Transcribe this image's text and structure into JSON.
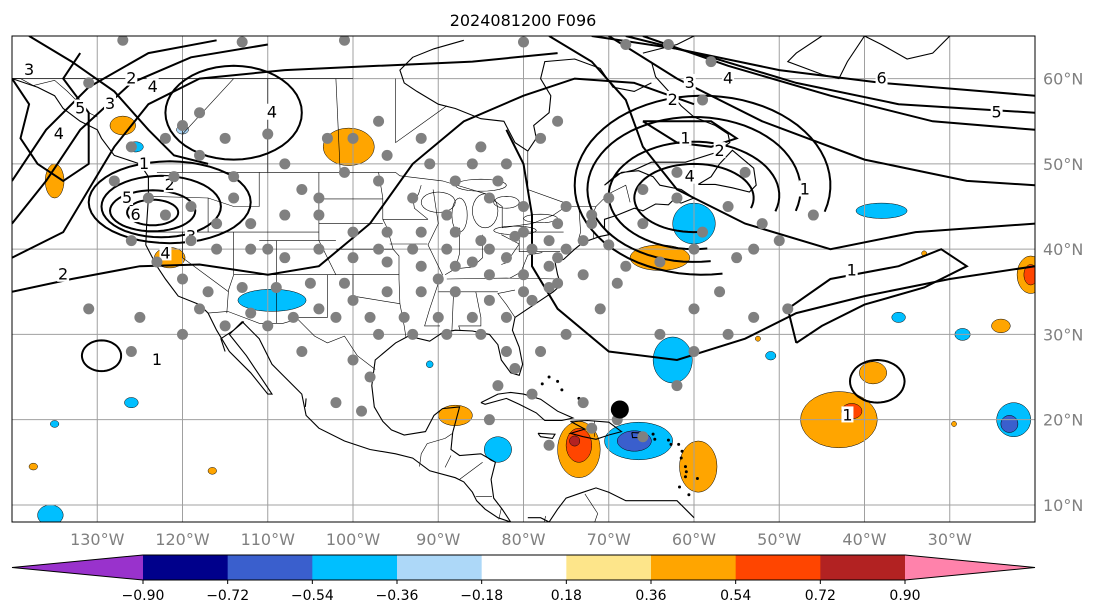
{
  "title": "2024081200 F096",
  "map": {
    "lon_range": [
      -140,
      -20
    ],
    "lat_range": [
      8,
      65
    ],
    "lon_labels": [
      {
        "lon": -130,
        "text": "130°W"
      },
      {
        "lon": -120,
        "text": "120°W"
      },
      {
        "lon": -110,
        "text": "110°W"
      },
      {
        "lon": -100,
        "text": "100°W"
      },
      {
        "lon": -90,
        "text": "90°W"
      },
      {
        "lon": -80,
        "text": "80°W"
      },
      {
        "lon": -70,
        "text": "70°W"
      },
      {
        "lon": -60,
        "text": "60°W"
      },
      {
        "lon": -50,
        "text": "50°W"
      },
      {
        "lon": -40,
        "text": "40°W"
      },
      {
        "lon": -30,
        "text": "30°W"
      }
    ],
    "lat_labels": [
      {
        "lat": 60,
        "text": "60°N"
      },
      {
        "lat": 50,
        "text": "50°N"
      },
      {
        "lat": 40,
        "text": "40°N"
      },
      {
        "lat": 30,
        "text": "30°N"
      },
      {
        "lat": 20,
        "text": "20°N"
      },
      {
        "lat": 10,
        "text": "10°N"
      }
    ],
    "grid": true,
    "grid_color": "#a0a0a0",
    "coastline_color": "#000000"
  },
  "colorbar": {
    "orientation": "horizontal",
    "extend": "both",
    "tick_labels": [
      "−0.90",
      "−0.72",
      "−0.54",
      "−0.36",
      "−0.18",
      "0.18",
      "0.36",
      "0.54",
      "0.72",
      "0.90"
    ],
    "colors": [
      "#9932cc",
      "#00008b",
      "#3a5fcd",
      "#00bfff",
      "#add8f8",
      "#ffffff",
      "#fde58a",
      "#ffa500",
      "#ff4500",
      "#b22222",
      "#ff82ab"
    ]
  },
  "contours": {
    "color": "#000000",
    "labels": [
      {
        "text": "1",
        "lon": -124.5,
        "lat": 50.0
      },
      {
        "text": "2",
        "lon": -121.5,
        "lat": 47.5
      },
      {
        "text": "3",
        "lon": -119.0,
        "lat": 41.5
      },
      {
        "text": "5",
        "lon": -126.5,
        "lat": 46.0
      },
      {
        "text": "6",
        "lon": -125.5,
        "lat": 44.0
      },
      {
        "text": "4",
        "lon": -122.0,
        "lat": 39.5
      },
      {
        "text": "3",
        "lon": -128.5,
        "lat": 57.0
      },
      {
        "text": "4",
        "lon": -123.5,
        "lat": 59.0
      },
      {
        "text": "5",
        "lon": -132.0,
        "lat": 56.5
      },
      {
        "text": "4",
        "lon": -134.5,
        "lat": 53.5
      },
      {
        "text": "3",
        "lon": -138.0,
        "lat": 61.0
      },
      {
        "text": "2",
        "lon": -126.0,
        "lat": 60.0
      },
      {
        "text": "4",
        "lon": -109.5,
        "lat": 56.0
      },
      {
        "text": "2",
        "lon": -134.0,
        "lat": 37.0
      },
      {
        "text": "1",
        "lon": -123.0,
        "lat": 27.0
      },
      {
        "text": "2",
        "lon": -62.5,
        "lat": 57.5
      },
      {
        "text": "3",
        "lon": -60.5,
        "lat": 59.5
      },
      {
        "text": "4",
        "lon": -56.0,
        "lat": 60.0
      },
      {
        "text": "1",
        "lon": -61.0,
        "lat": 53.0
      },
      {
        "text": "2",
        "lon": -57.0,
        "lat": 51.5
      },
      {
        "text": "4",
        "lon": -60.5,
        "lat": 48.5
      },
      {
        "text": "1",
        "lon": -47.0,
        "lat": 47.0
      },
      {
        "text": "6",
        "lon": -38.0,
        "lat": 60.0
      },
      {
        "text": "5",
        "lon": -24.5,
        "lat": 56.0
      },
      {
        "text": "1",
        "lon": -41.5,
        "lat": 37.5
      },
      {
        "text": "1",
        "lon": -42.0,
        "lat": 20.5
      }
    ]
  },
  "colors": {
    "station_marker": "#808080",
    "center_marker": "#000000"
  }
}
